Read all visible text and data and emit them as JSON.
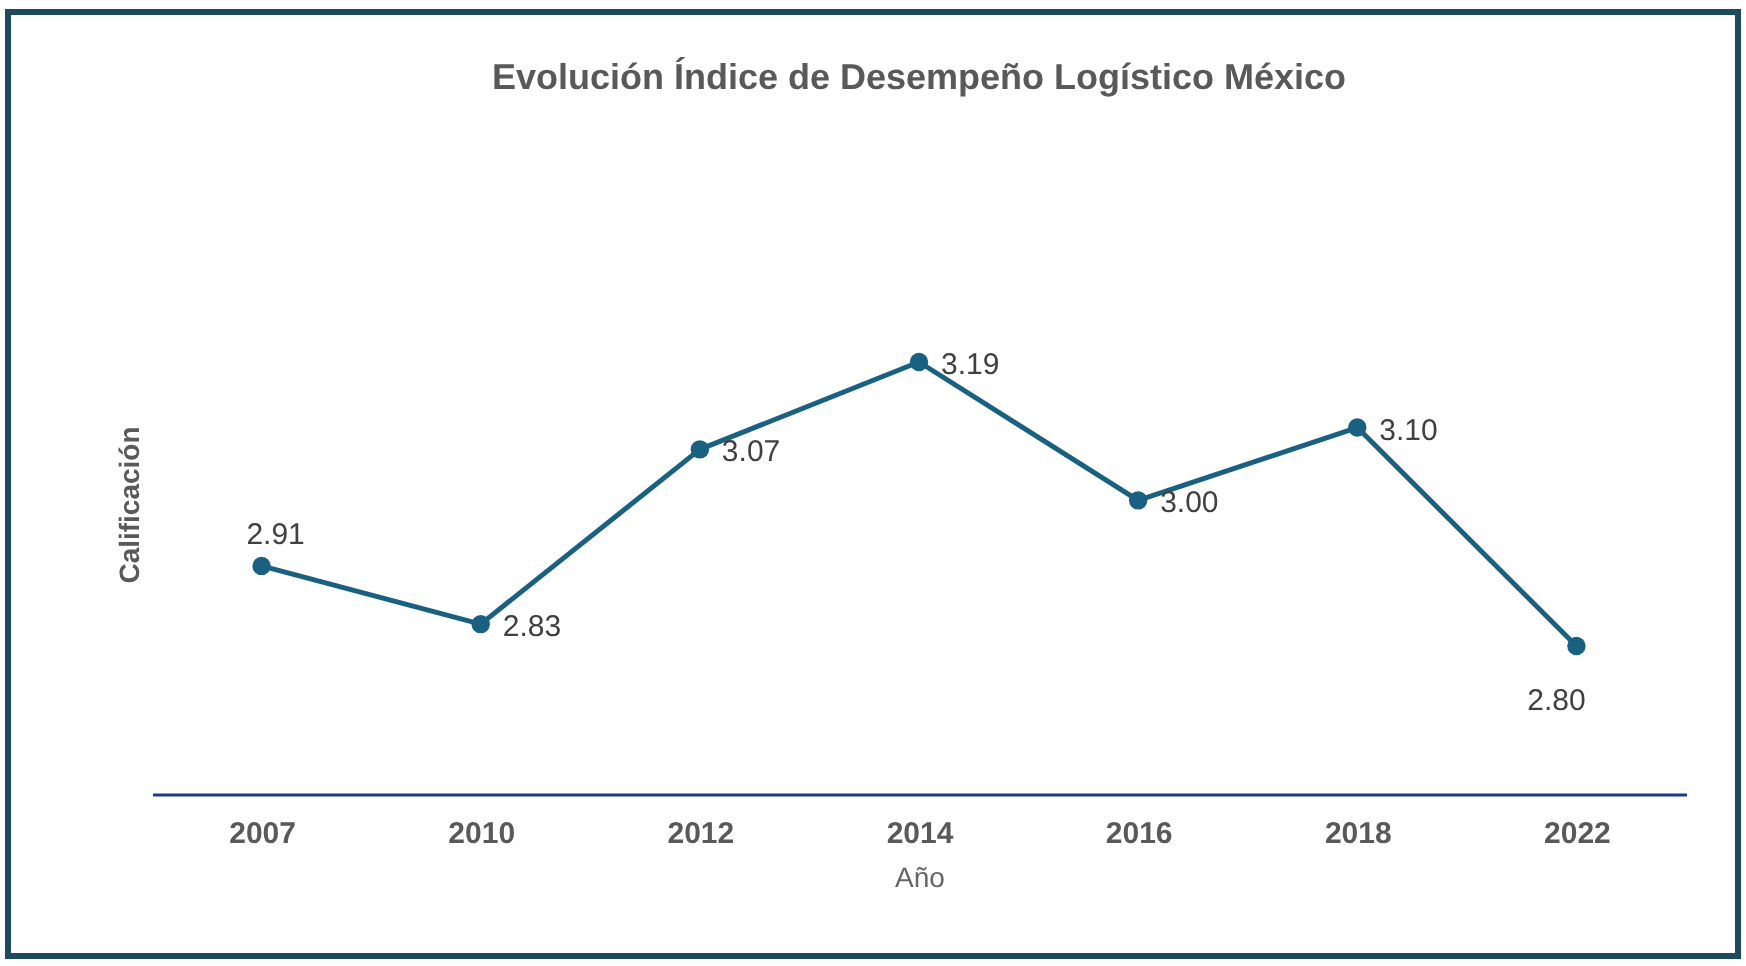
{
  "chart_data": {
    "type": "line",
    "title": "Evolución Índice de Desempeño Logístico México",
    "xlabel": "Año",
    "ylabel": "Calificación",
    "categories": [
      "2007",
      "2010",
      "2012",
      "2014",
      "2016",
      "2018",
      "2022"
    ],
    "series": [
      {
        "color": "#1a6080",
        "values": [
          2.91,
          2.83,
          3.07,
          3.19,
          3.0,
          3.1,
          2.8
        ],
        "value_labels": [
          "2.91",
          "2.83",
          "3.07",
          "3.19",
          "3.00",
          "3.10",
          "2.80"
        ]
      }
    ],
    "marker": "circle",
    "line_style": "solid",
    "tick_labels": "x"
  }
}
